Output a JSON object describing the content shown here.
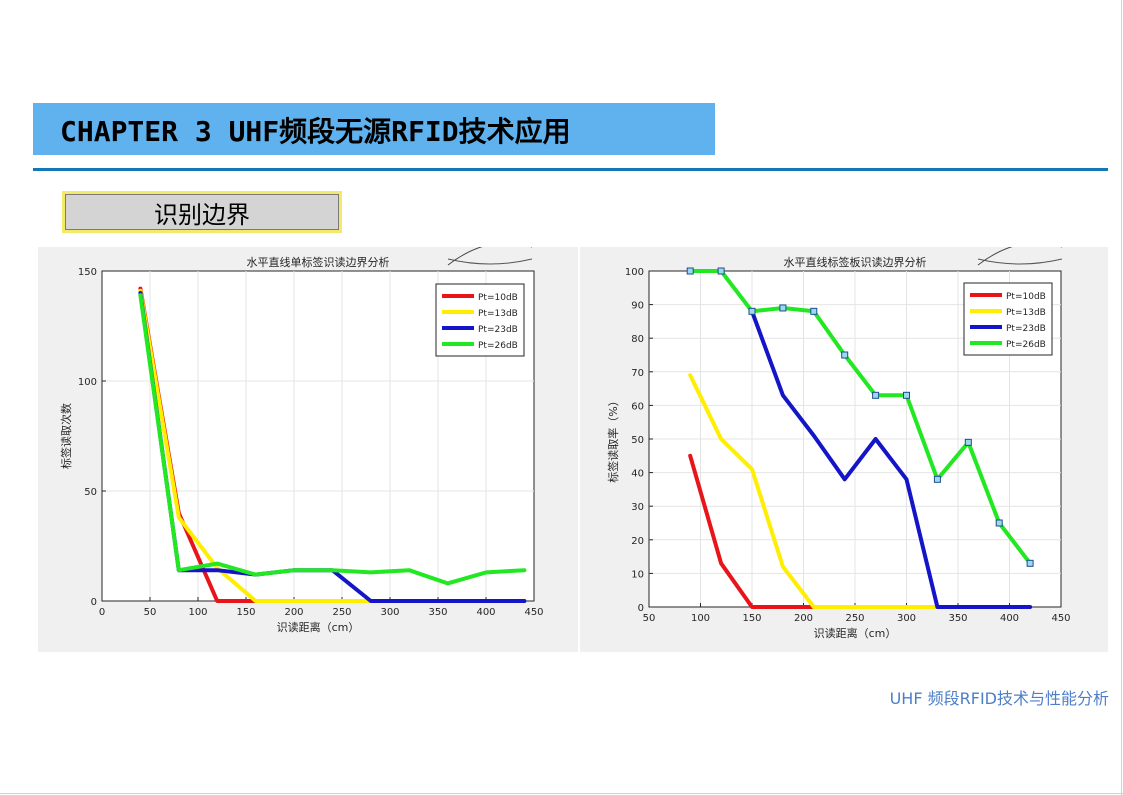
{
  "header": {
    "title": "CHAPTER 3 UHF频段无源RFID技术应用",
    "section_label": "识别边界"
  },
  "footer": {
    "text": "UHF 频段RFID技术与性能分析"
  },
  "chart_data": [
    {
      "type": "line",
      "title": "水平直线单标签识读边界分析",
      "xlabel": "识读距离（cm）",
      "ylabel": "标签读取次数",
      "xlim": [
        0,
        450
      ],
      "ylim": [
        0,
        150
      ],
      "xticks": [
        0,
        50,
        100,
        150,
        200,
        250,
        300,
        350,
        400,
        450
      ],
      "yticks": [
        0,
        50,
        100,
        150
      ],
      "grid": true,
      "legend_position": "top-right",
      "series": [
        {
          "name": "Pt=10dB",
          "color": "#e8141a",
          "x": [
            40,
            80,
            120,
            160
          ],
          "y": [
            142,
            40,
            0,
            0
          ]
        },
        {
          "name": "Pt=13dB",
          "color": "#ffee00",
          "x": [
            40,
            80,
            120,
            160,
            200,
            240,
            280
          ],
          "y": [
            141,
            38,
            15,
            0,
            0,
            0,
            0
          ]
        },
        {
          "name": "Pt=23dB",
          "color": "#1414c8",
          "x": [
            40,
            80,
            120,
            160,
            200,
            240,
            280,
            320,
            360,
            400,
            440
          ],
          "y": [
            140,
            14,
            14,
            12,
            14,
            14,
            0,
            0,
            0,
            0,
            0
          ]
        },
        {
          "name": "Pt=26dB",
          "color": "#22e822",
          "x": [
            40,
            80,
            120,
            160,
            200,
            240,
            280,
            320,
            360,
            400,
            440
          ],
          "y": [
            139,
            14,
            17,
            12,
            14,
            14,
            13,
            14,
            8,
            13,
            14
          ]
        }
      ]
    },
    {
      "type": "line",
      "title": "水平直线标签板识读边界分析",
      "xlabel": "识读距离（cm）",
      "ylabel": "标签读取率（%）",
      "xlim": [
        50,
        450
      ],
      "ylim": [
        0,
        100
      ],
      "xticks": [
        50,
        100,
        150,
        200,
        250,
        300,
        350,
        400,
        450
      ],
      "yticks": [
        0,
        10,
        20,
        30,
        40,
        50,
        60,
        70,
        80,
        90,
        100
      ],
      "grid": true,
      "legend_position": "top-right",
      "series": [
        {
          "name": "Pt=10dB",
          "color": "#e8141a",
          "x": [
            90,
            120,
            150,
            180,
            210
          ],
          "y": [
            45,
            13,
            0,
            0,
            0
          ]
        },
        {
          "name": "Pt=13dB",
          "color": "#ffee00",
          "x": [
            90,
            120,
            150,
            180,
            210,
            240,
            270,
            300,
            330
          ],
          "y": [
            69,
            50,
            41,
            12,
            0,
            0,
            0,
            0,
            0
          ]
        },
        {
          "name": "Pt=23dB",
          "color": "#1414c8",
          "x": [
            150,
            180,
            210,
            240,
            270,
            300,
            330,
            360,
            390,
            420
          ],
          "y": [
            88,
            63,
            51,
            38,
            50,
            38,
            0,
            0,
            0,
            0
          ]
        },
        {
          "name": "Pt=26dB",
          "color": "#22e822",
          "markers": true,
          "x": [
            90,
            120,
            150,
            180,
            210,
            240,
            270,
            300,
            330,
            360,
            390,
            420
          ],
          "y": [
            100,
            100,
            88,
            89,
            88,
            75,
            63,
            63,
            38,
            49,
            25,
            13
          ]
        }
      ]
    }
  ]
}
